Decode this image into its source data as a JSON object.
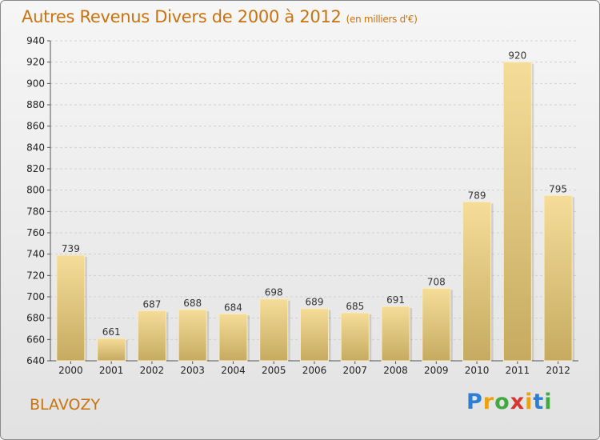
{
  "title": "Autres Revenus Divers de 2000 à 2012",
  "subtitle": "(en milliers d'€)",
  "commune": "BLAVOZY",
  "logo": {
    "letters": [
      "P",
      "r",
      "o",
      "x",
      "i",
      "t",
      "i"
    ],
    "colors": [
      "#2d7fd4",
      "#e8a214",
      "#43a843",
      "#d8362f",
      "#e8a214",
      "#2d7fd4",
      "#43a843"
    ]
  },
  "chart_data": {
    "type": "bar",
    "title": "Autres Revenus Divers de 2000 à 2012",
    "subtitle": "(en milliers d'€)",
    "categories": [
      "2000",
      "2001",
      "2002",
      "2003",
      "2004",
      "2005",
      "2006",
      "2007",
      "2008",
      "2009",
      "2010",
      "2011",
      "2012"
    ],
    "values": [
      739,
      661,
      687,
      688,
      684,
      698,
      689,
      685,
      691,
      708,
      789,
      920,
      795
    ],
    "ylim": [
      640,
      940
    ],
    "yticks": [
      640,
      660,
      680,
      700,
      720,
      740,
      760,
      780,
      800,
      820,
      840,
      860,
      880,
      900,
      920,
      940
    ],
    "grid": true,
    "data_labels": true,
    "bar_color_light": "#f5dd99",
    "bar_color_dark": "#c6aa60"
  }
}
